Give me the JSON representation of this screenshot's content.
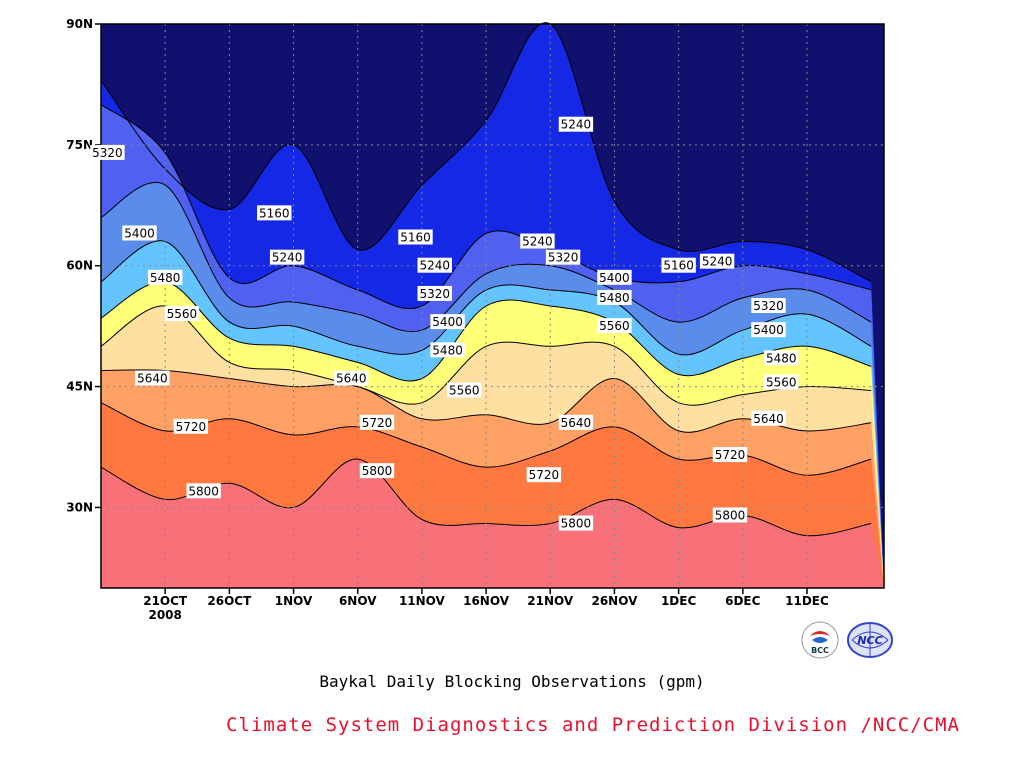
{
  "chart_data": {
    "type": "contour",
    "title": "Baykal Daily Blocking Observations (gpm)",
    "credit": "Climate System Diagnostics and Prediction Division /NCC/CMA",
    "x_axis": {
      "ticks": [
        "21OCT",
        "26OCT",
        "1NOV",
        "6NOV",
        "11NOV",
        "16NOV",
        "21NOV",
        "26NOV",
        "1DEC",
        "6DEC",
        "11DEC"
      ],
      "year_label": "2008",
      "start_date": "2008-10-16",
      "end_date": "2008-12-16"
    },
    "y_axis": {
      "ticks": [
        "30N",
        "45N",
        "60N",
        "75N",
        "90N"
      ],
      "values": [
        30,
        45,
        60,
        75,
        90
      ],
      "ylim": [
        20,
        90
      ]
    },
    "grid": true,
    "contour_levels": [
      5160,
      5240,
      5320,
      5400,
      5480,
      5560,
      5640,
      5720,
      5800
    ],
    "fill_colors": [
      "#10106e",
      "#1428e6",
      "#5060f0",
      "#5a8cec",
      "#64c4ff",
      "#ffff78",
      "#ffe0a0",
      "#ffa064",
      "#ff7840",
      "#f87078",
      "#e8304a"
    ],
    "isolines": [
      {
        "level": 5800,
        "days": [
          0,
          5,
          10,
          15,
          20,
          25,
          30,
          35,
          40,
          45,
          50,
          55,
          60
        ],
        "lat": [
          35,
          31,
          33,
          30,
          36,
          28.5,
          28,
          28,
          31,
          27.5,
          29,
          26.5,
          28
        ]
      },
      {
        "level": 5720,
        "days": [
          0,
          5,
          10,
          15,
          20,
          25,
          30,
          35,
          40,
          45,
          50,
          55,
          60
        ],
        "lat": [
          43,
          39.5,
          41,
          39,
          40,
          37.5,
          35,
          37,
          40,
          36,
          36.5,
          34,
          36
        ]
      },
      {
        "level": 5640,
        "days": [
          0,
          5,
          10,
          15,
          20,
          25,
          30,
          35,
          40,
          45,
          50,
          55,
          60
        ],
        "lat": [
          47,
          47,
          46,
          45,
          45,
          41,
          41.5,
          40.5,
          46,
          39.5,
          41,
          39.5,
          40.5
        ]
      },
      {
        "level": 5560,
        "days": [
          0,
          5,
          10,
          15,
          20,
          25,
          30,
          35,
          40,
          45,
          50,
          55,
          60
        ],
        "lat": [
          50,
          55,
          48,
          47,
          45,
          43,
          50,
          50,
          50,
          43,
          44,
          45,
          44.5
        ]
      },
      {
        "level": 5480,
        "days": [
          0,
          5,
          10,
          15,
          20,
          25,
          30,
          35,
          40,
          45,
          50,
          55,
          60
        ],
        "lat": [
          53.5,
          58,
          51,
          50,
          48,
          46,
          55,
          55,
          53,
          46.5,
          48.5,
          50,
          47.5
        ]
      },
      {
        "level": 5400,
        "days": [
          0,
          5,
          10,
          15,
          20,
          25,
          30,
          35,
          40,
          45,
          50,
          55,
          60
        ],
        "lat": [
          58,
          63,
          53,
          52.5,
          50,
          49.5,
          57,
          57,
          55.5,
          49,
          52,
          54,
          50
        ]
      },
      {
        "level": 5320,
        "days": [
          0,
          5,
          10,
          15,
          20,
          25,
          30,
          35,
          40,
          45,
          50,
          55,
          60
        ],
        "lat": [
          66,
          70,
          56,
          55.5,
          54,
          52,
          59,
          60,
          57,
          53,
          56,
          57,
          53
        ]
      },
      {
        "level": 5240,
        "days": [
          0,
          5,
          10,
          15,
          20,
          25,
          30,
          35,
          40,
          45,
          50,
          55,
          60
        ],
        "lat": [
          80,
          74,
          58.5,
          60,
          57,
          55,
          64,
          62,
          58.5,
          58,
          60,
          59,
          57
        ]
      },
      {
        "level": 5160,
        "days": [
          0,
          5,
          10,
          15,
          20,
          25,
          30,
          35,
          40,
          45,
          50,
          55,
          60
        ],
        "lat": [
          83,
          72,
          67,
          75,
          62,
          70,
          78,
          90,
          68,
          62,
          63,
          62,
          58
        ]
      }
    ],
    "contour_labels": [
      {
        "text": "5320",
        "day": 0.5,
        "lat": 74
      },
      {
        "text": "5400",
        "day": 3,
        "lat": 64
      },
      {
        "text": "5480",
        "day": 5,
        "lat": 58.5
      },
      {
        "text": "5560",
        "day": 6.3,
        "lat": 54
      },
      {
        "text": "5640",
        "day": 4,
        "lat": 46
      },
      {
        "text": "5720",
        "day": 7,
        "lat": 40
      },
      {
        "text": "5800",
        "day": 8,
        "lat": 32
      },
      {
        "text": "5160",
        "day": 13.5,
        "lat": 66.5
      },
      {
        "text": "5240",
        "day": 14.5,
        "lat": 61
      },
      {
        "text": "5640",
        "day": 19.5,
        "lat": 46
      },
      {
        "text": "5720",
        "day": 21.5,
        "lat": 40.5
      },
      {
        "text": "5800",
        "day": 21.5,
        "lat": 34.5
      },
      {
        "text": "5160",
        "day": 24.5,
        "lat": 63.5
      },
      {
        "text": "5240",
        "day": 26,
        "lat": 60
      },
      {
        "text": "5320",
        "day": 26,
        "lat": 56.5
      },
      {
        "text": "5400",
        "day": 27,
        "lat": 53
      },
      {
        "text": "5480",
        "day": 27,
        "lat": 49.5
      },
      {
        "text": "5560",
        "day": 28.3,
        "lat": 44.5
      },
      {
        "text": "5240",
        "day": 34,
        "lat": 63
      },
      {
        "text": "5320",
        "day": 36,
        "lat": 61
      },
      {
        "text": "5240",
        "day": 37,
        "lat": 77.5
      },
      {
        "text": "5640",
        "day": 37,
        "lat": 40.5
      },
      {
        "text": "5720",
        "day": 34.5,
        "lat": 34
      },
      {
        "text": "5800",
        "day": 37,
        "lat": 28
      },
      {
        "text": "5400",
        "day": 40,
        "lat": 58.5
      },
      {
        "text": "5480",
        "day": 40,
        "lat": 56
      },
      {
        "text": "5560",
        "day": 40,
        "lat": 52.5
      },
      {
        "text": "5160",
        "day": 45,
        "lat": 60
      },
      {
        "text": "5240",
        "day": 48,
        "lat": 60.5
      },
      {
        "text": "5320",
        "day": 52,
        "lat": 55
      },
      {
        "text": "5400",
        "day": 52,
        "lat": 52
      },
      {
        "text": "5480",
        "day": 53,
        "lat": 48.5
      },
      {
        "text": "5560",
        "day": 53,
        "lat": 45.5
      },
      {
        "text": "5640",
        "day": 52,
        "lat": 41
      },
      {
        "text": "5720",
        "day": 49,
        "lat": 36.5
      },
      {
        "text": "5800",
        "day": 49,
        "lat": 29
      }
    ]
  }
}
